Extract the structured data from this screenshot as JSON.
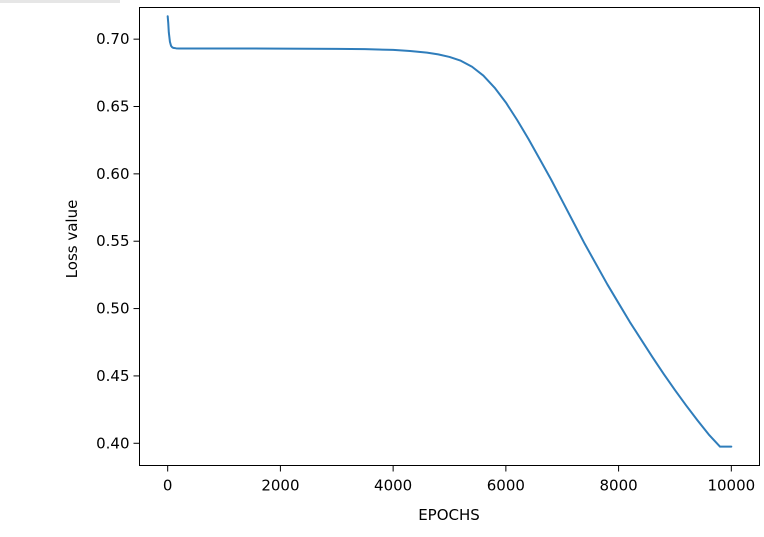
{
  "chart_data": {
    "type": "line",
    "title": "",
    "xlabel": "EPOCHS",
    "ylabel": "Loss value",
    "xlim": [
      -500,
      10500
    ],
    "ylim": [
      0.3835,
      0.7235
    ],
    "xticks": [
      {
        "value": 0,
        "label": "0"
      },
      {
        "value": 2000,
        "label": "2000"
      },
      {
        "value": 4000,
        "label": "4000"
      },
      {
        "value": 6000,
        "label": "6000"
      },
      {
        "value": 8000,
        "label": "8000"
      },
      {
        "value": 10000,
        "label": "10000"
      }
    ],
    "yticks": [
      {
        "value": 0.4,
        "label": "0.40"
      },
      {
        "value": 0.45,
        "label": "0.45"
      },
      {
        "value": 0.5,
        "label": "0.50"
      },
      {
        "value": 0.55,
        "label": "0.55"
      },
      {
        "value": 0.6,
        "label": "0.60"
      },
      {
        "value": 0.65,
        "label": "0.65"
      },
      {
        "value": 0.7,
        "label": "0.70"
      }
    ],
    "grid": false,
    "legend": "none",
    "series": [
      {
        "color": "#2f7dbb",
        "x": [
          0,
          10,
          20,
          40,
          60,
          80,
          100,
          150,
          200,
          500,
          1000,
          2000,
          3000,
          3500,
          4000,
          4300,
          4600,
          4800,
          5000,
          5200,
          5400,
          5600,
          5800,
          6000,
          6200,
          6400,
          6600,
          6800,
          7000,
          7200,
          7400,
          7600,
          7800,
          8000,
          8200,
          8400,
          8600,
          8800,
          9000,
          9200,
          9400,
          9600,
          9800,
          10000
        ],
        "y": [
          0.717,
          0.712,
          0.705,
          0.698,
          0.695,
          0.694,
          0.6935,
          0.6932,
          0.6931,
          0.6931,
          0.6931,
          0.693,
          0.6928,
          0.6926,
          0.692,
          0.6912,
          0.69,
          0.6887,
          0.6868,
          0.684,
          0.6795,
          0.673,
          0.664,
          0.653,
          0.64,
          0.626,
          0.611,
          0.596,
          0.58,
          0.564,
          0.548,
          0.533,
          0.518,
          0.504,
          0.49,
          0.477,
          0.464,
          0.4515,
          0.4395,
          0.428,
          0.417,
          0.4065,
          0.3975,
          0.3975
        ]
      }
    ]
  }
}
